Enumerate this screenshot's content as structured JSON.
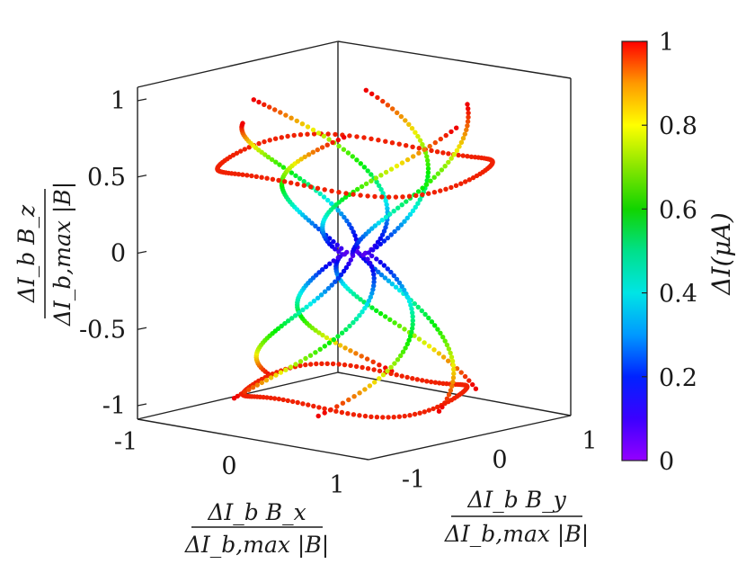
{
  "chart_data": {
    "type": "scatter",
    "projection": "3d",
    "title": "",
    "x_axis": {
      "label_numerator": "ΔI_b B_x",
      "label_denominator": "ΔI_b,max |B|",
      "range": [
        -1,
        1
      ],
      "ticks": [
        "-1",
        "0",
        "1"
      ]
    },
    "y_axis": {
      "label_numerator": "ΔI_b B_y",
      "label_denominator": "ΔI_b,max |B|",
      "range": [
        -1,
        1
      ],
      "ticks": [
        "-1",
        "0",
        "1"
      ]
    },
    "z_axis": {
      "label_numerator": "ΔI_b B_z",
      "label_denominator": "ΔI_b,max |B|",
      "range": [
        -1,
        1
      ],
      "ticks": [
        "-1",
        "-0.5",
        "0",
        "0.5",
        "1"
      ]
    },
    "colorbar": {
      "label": "ΔI(μA)",
      "range": [
        0,
        1
      ],
      "ticks": [
        "0",
        "0.2",
        "0.4",
        "0.6",
        "0.8",
        "1"
      ],
      "colormap": "hsv"
    },
    "grid": false
  }
}
